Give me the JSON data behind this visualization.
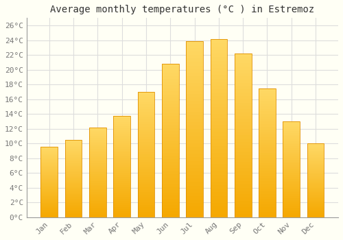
{
  "title": "Average monthly temperatures (°C ) in Estremoz",
  "months": [
    "Jan",
    "Feb",
    "Mar",
    "Apr",
    "May",
    "Jun",
    "Jul",
    "Aug",
    "Sep",
    "Oct",
    "Nov",
    "Dec"
  ],
  "temperatures": [
    9.6,
    10.5,
    12.2,
    13.7,
    17.0,
    20.8,
    23.9,
    24.1,
    22.2,
    17.5,
    13.0,
    10.0
  ],
  "bar_color_bottom": "#F5A800",
  "bar_color_top": "#FFD966",
  "bar_edge_color": "#E09000",
  "background_color": "#FFFFF5",
  "grid_color": "#DDDDDD",
  "text_color": "#777777",
  "title_color": "#333333",
  "ylim": [
    0,
    27
  ],
  "ytick_step": 2,
  "title_fontsize": 10,
  "tick_fontsize": 8
}
